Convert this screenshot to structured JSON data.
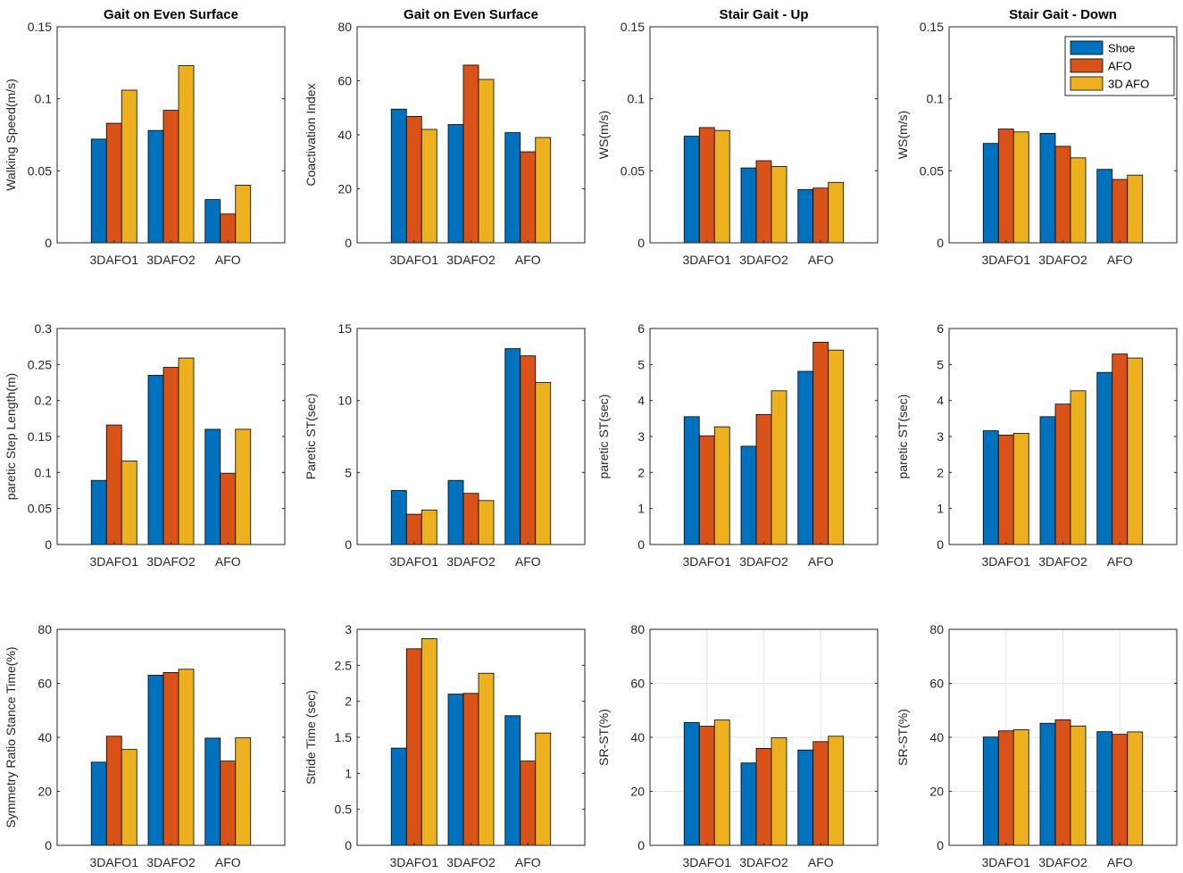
{
  "figure": {
    "series_names": [
      "Shoe",
      "AFO",
      "3D AFO"
    ],
    "colors": [
      "#0072BD",
      "#D95319",
      "#EDB120"
    ]
  },
  "chart_data": [
    {
      "type": "bar",
      "title": "Gait on Even Surface",
      "ylabel": "Walking Speed(m/s)",
      "categories": [
        "3DAFO1",
        "3DAFO2",
        "AFO"
      ],
      "ylim": [
        0,
        0.15
      ],
      "yticks": [
        0,
        0.05,
        0.1,
        0.15
      ],
      "ytick_labels": [
        "0",
        "0.05",
        "0.1",
        "0.15"
      ],
      "grid": false,
      "legend": null,
      "series": [
        {
          "name": "Shoe",
          "values": [
            0.072,
            0.078,
            0.03
          ]
        },
        {
          "name": "AFO",
          "values": [
            0.083,
            0.092,
            0.02
          ]
        },
        {
          "name": "3D AFO",
          "values": [
            0.106,
            0.123,
            0.04
          ]
        }
      ]
    },
    {
      "type": "bar",
      "title": "Gait on Even Surface",
      "ylabel": "Coactivation Index",
      "categories": [
        "3DAFO1",
        "3DAFO2",
        "AFO"
      ],
      "ylim": [
        0,
        80
      ],
      "yticks": [
        0,
        20,
        40,
        60,
        80
      ],
      "ytick_labels": [
        "0",
        "20",
        "40",
        "60",
        "80"
      ],
      "grid": false,
      "legend": null,
      "series": [
        {
          "name": "Shoe",
          "values": [
            49.5,
            43.8,
            40.8
          ]
        },
        {
          "name": "AFO",
          "values": [
            46.8,
            65.8,
            33.7
          ]
        },
        {
          "name": "3D AFO",
          "values": [
            42.0,
            60.5,
            39.0
          ]
        }
      ]
    },
    {
      "type": "bar",
      "title": "Stair Gait - Up",
      "ylabel": "WS(m/s)",
      "categories": [
        "3DAFO1",
        "3DAFO2",
        "AFO"
      ],
      "ylim": [
        0,
        0.15
      ],
      "yticks": [
        0,
        0.05,
        0.1,
        0.15
      ],
      "ytick_labels": [
        "0",
        "0.05",
        "0.1",
        "0.15"
      ],
      "grid": false,
      "legend": null,
      "series": [
        {
          "name": "Shoe",
          "values": [
            0.074,
            0.052,
            0.037
          ]
        },
        {
          "name": "AFO",
          "values": [
            0.08,
            0.057,
            0.038
          ]
        },
        {
          "name": "3D AFO",
          "values": [
            0.078,
            0.053,
            0.042
          ]
        }
      ]
    },
    {
      "type": "bar",
      "title": "Stair Gait - Down",
      "ylabel": "WS(m/s)",
      "categories": [
        "3DAFO1",
        "3DAFO2",
        "AFO"
      ],
      "ylim": [
        0,
        0.15
      ],
      "yticks": [
        0,
        0.05,
        0.1,
        0.15
      ],
      "ytick_labels": [
        "0",
        "0.05",
        "0.1",
        "0.15"
      ],
      "grid": false,
      "legend": "top-right",
      "series": [
        {
          "name": "Shoe",
          "values": [
            0.069,
            0.076,
            0.051
          ]
        },
        {
          "name": "AFO",
          "values": [
            0.079,
            0.067,
            0.044
          ]
        },
        {
          "name": "3D AFO",
          "values": [
            0.077,
            0.059,
            0.047
          ]
        }
      ]
    },
    {
      "type": "bar",
      "title": "",
      "ylabel": "paretic Step Length(m)",
      "categories": [
        "3DAFO1",
        "3DAFO2",
        "AFO"
      ],
      "ylim": [
        0,
        0.3
      ],
      "yticks": [
        0,
        0.05,
        0.1,
        0.15,
        0.2,
        0.25,
        0.3
      ],
      "ytick_labels": [
        "0",
        "0.05",
        "0.1",
        "0.15",
        "0.2",
        "0.25",
        "0.3"
      ],
      "grid": false,
      "legend": null,
      "series": [
        {
          "name": "Shoe",
          "values": [
            0.089,
            0.235,
            0.16
          ]
        },
        {
          "name": "AFO",
          "values": [
            0.166,
            0.246,
            0.099
          ]
        },
        {
          "name": "3D AFO",
          "values": [
            0.116,
            0.259,
            0.16
          ]
        }
      ]
    },
    {
      "type": "bar",
      "title": "",
      "ylabel": "Paretic ST(sec)",
      "categories": [
        "3DAFO1",
        "3DAFO2",
        "AFO"
      ],
      "ylim": [
        0,
        15
      ],
      "yticks": [
        0,
        5,
        10,
        15
      ],
      "ytick_labels": [
        "0",
        "5",
        "10",
        "15"
      ],
      "grid": false,
      "legend": null,
      "series": [
        {
          "name": "Shoe",
          "values": [
            3.75,
            4.45,
            13.6
          ]
        },
        {
          "name": "AFO",
          "values": [
            2.1,
            3.55,
            13.1
          ]
        },
        {
          "name": "3D AFO",
          "values": [
            2.4,
            3.05,
            11.25
          ]
        }
      ]
    },
    {
      "type": "bar",
      "title": "",
      "ylabel": "paretic ST(sec)",
      "categories": [
        "3DAFO1",
        "3DAFO2",
        "AFO"
      ],
      "ylim": [
        0,
        6
      ],
      "yticks": [
        0,
        1,
        2,
        3,
        4,
        5,
        6
      ],
      "ytick_labels": [
        "0",
        "1",
        "2",
        "3",
        "4",
        "5",
        "6"
      ],
      "grid": false,
      "legend": null,
      "series": [
        {
          "name": "Shoe",
          "values": [
            3.55,
            2.73,
            4.81
          ]
        },
        {
          "name": "AFO",
          "values": [
            3.02,
            3.61,
            5.62
          ]
        },
        {
          "name": "3D AFO",
          "values": [
            3.27,
            4.27,
            5.4
          ]
        }
      ]
    },
    {
      "type": "bar",
      "title": "",
      "ylabel": "paretic ST(sec)",
      "categories": [
        "3DAFO1",
        "3DAFO2",
        "AFO"
      ],
      "ylim": [
        0,
        6
      ],
      "yticks": [
        0,
        1,
        2,
        3,
        4,
        5,
        6
      ],
      "ytick_labels": [
        "0",
        "1",
        "2",
        "3",
        "4",
        "5",
        "6"
      ],
      "grid": false,
      "legend": null,
      "series": [
        {
          "name": "Shoe",
          "values": [
            3.16,
            3.55,
            4.78
          ]
        },
        {
          "name": "AFO",
          "values": [
            3.04,
            3.9,
            5.29
          ]
        },
        {
          "name": "3D AFO",
          "values": [
            3.09,
            4.27,
            5.18
          ]
        }
      ]
    },
    {
      "type": "bar",
      "title": "",
      "ylabel": "Symmetry Ratio Stance Time(%)",
      "categories": [
        "3DAFO1",
        "3DAFO2",
        "AFO"
      ],
      "ylim": [
        0,
        80
      ],
      "yticks": [
        0,
        20,
        40,
        60,
        80
      ],
      "ytick_labels": [
        "0",
        "20",
        "40",
        "60",
        "80"
      ],
      "grid": false,
      "legend": null,
      "series": [
        {
          "name": "Shoe",
          "values": [
            30.8,
            63.0,
            39.7
          ]
        },
        {
          "name": "AFO",
          "values": [
            40.4,
            64.0,
            31.2
          ]
        },
        {
          "name": "3D AFO",
          "values": [
            35.5,
            65.2,
            39.8
          ]
        }
      ]
    },
    {
      "type": "bar",
      "title": "",
      "ylabel": "Stride Time (sec)",
      "categories": [
        "3DAFO1",
        "3DAFO2",
        "AFO"
      ],
      "ylim": [
        0,
        3
      ],
      "yticks": [
        0,
        0.5,
        1,
        1.5,
        2,
        2.5,
        3
      ],
      "ytick_labels": [
        "0",
        "0.5",
        "1",
        "1.5",
        "2",
        "2.5",
        "3"
      ],
      "grid": false,
      "legend": null,
      "series": [
        {
          "name": "Shoe",
          "values": [
            1.35,
            2.1,
            1.8
          ]
        },
        {
          "name": "AFO",
          "values": [
            2.73,
            2.11,
            1.17
          ]
        },
        {
          "name": "3D AFO",
          "values": [
            2.87,
            2.39,
            1.56
          ]
        }
      ]
    },
    {
      "type": "bar",
      "title": "",
      "ylabel": "SR-ST(%)",
      "categories": [
        "3DAFO1",
        "3DAFO2",
        "AFO"
      ],
      "ylim": [
        0,
        80
      ],
      "yticks": [
        0,
        20,
        40,
        60,
        80
      ],
      "ytick_labels": [
        "0",
        "20",
        "40",
        "60",
        "80"
      ],
      "grid": true,
      "legend": null,
      "series": [
        {
          "name": "Shoe",
          "values": [
            45.5,
            30.5,
            35.3
          ]
        },
        {
          "name": "AFO",
          "values": [
            44.1,
            35.9,
            38.4
          ]
        },
        {
          "name": "3D AFO",
          "values": [
            46.4,
            39.8,
            40.4
          ]
        }
      ]
    },
    {
      "type": "bar",
      "title": "",
      "ylabel": "SR-ST(%)",
      "categories": [
        "3DAFO1",
        "3DAFO2",
        "AFO"
      ],
      "ylim": [
        0,
        80
      ],
      "yticks": [
        0,
        20,
        40,
        60,
        80
      ],
      "ytick_labels": [
        "0",
        "20",
        "40",
        "60",
        "80"
      ],
      "grid": true,
      "legend": null,
      "series": [
        {
          "name": "Shoe",
          "values": [
            40.1,
            45.2,
            42.1
          ]
        },
        {
          "name": "AFO",
          "values": [
            42.4,
            46.5,
            41.1
          ]
        },
        {
          "name": "3D AFO",
          "values": [
            42.8,
            44.2,
            42.0
          ]
        }
      ]
    }
  ]
}
